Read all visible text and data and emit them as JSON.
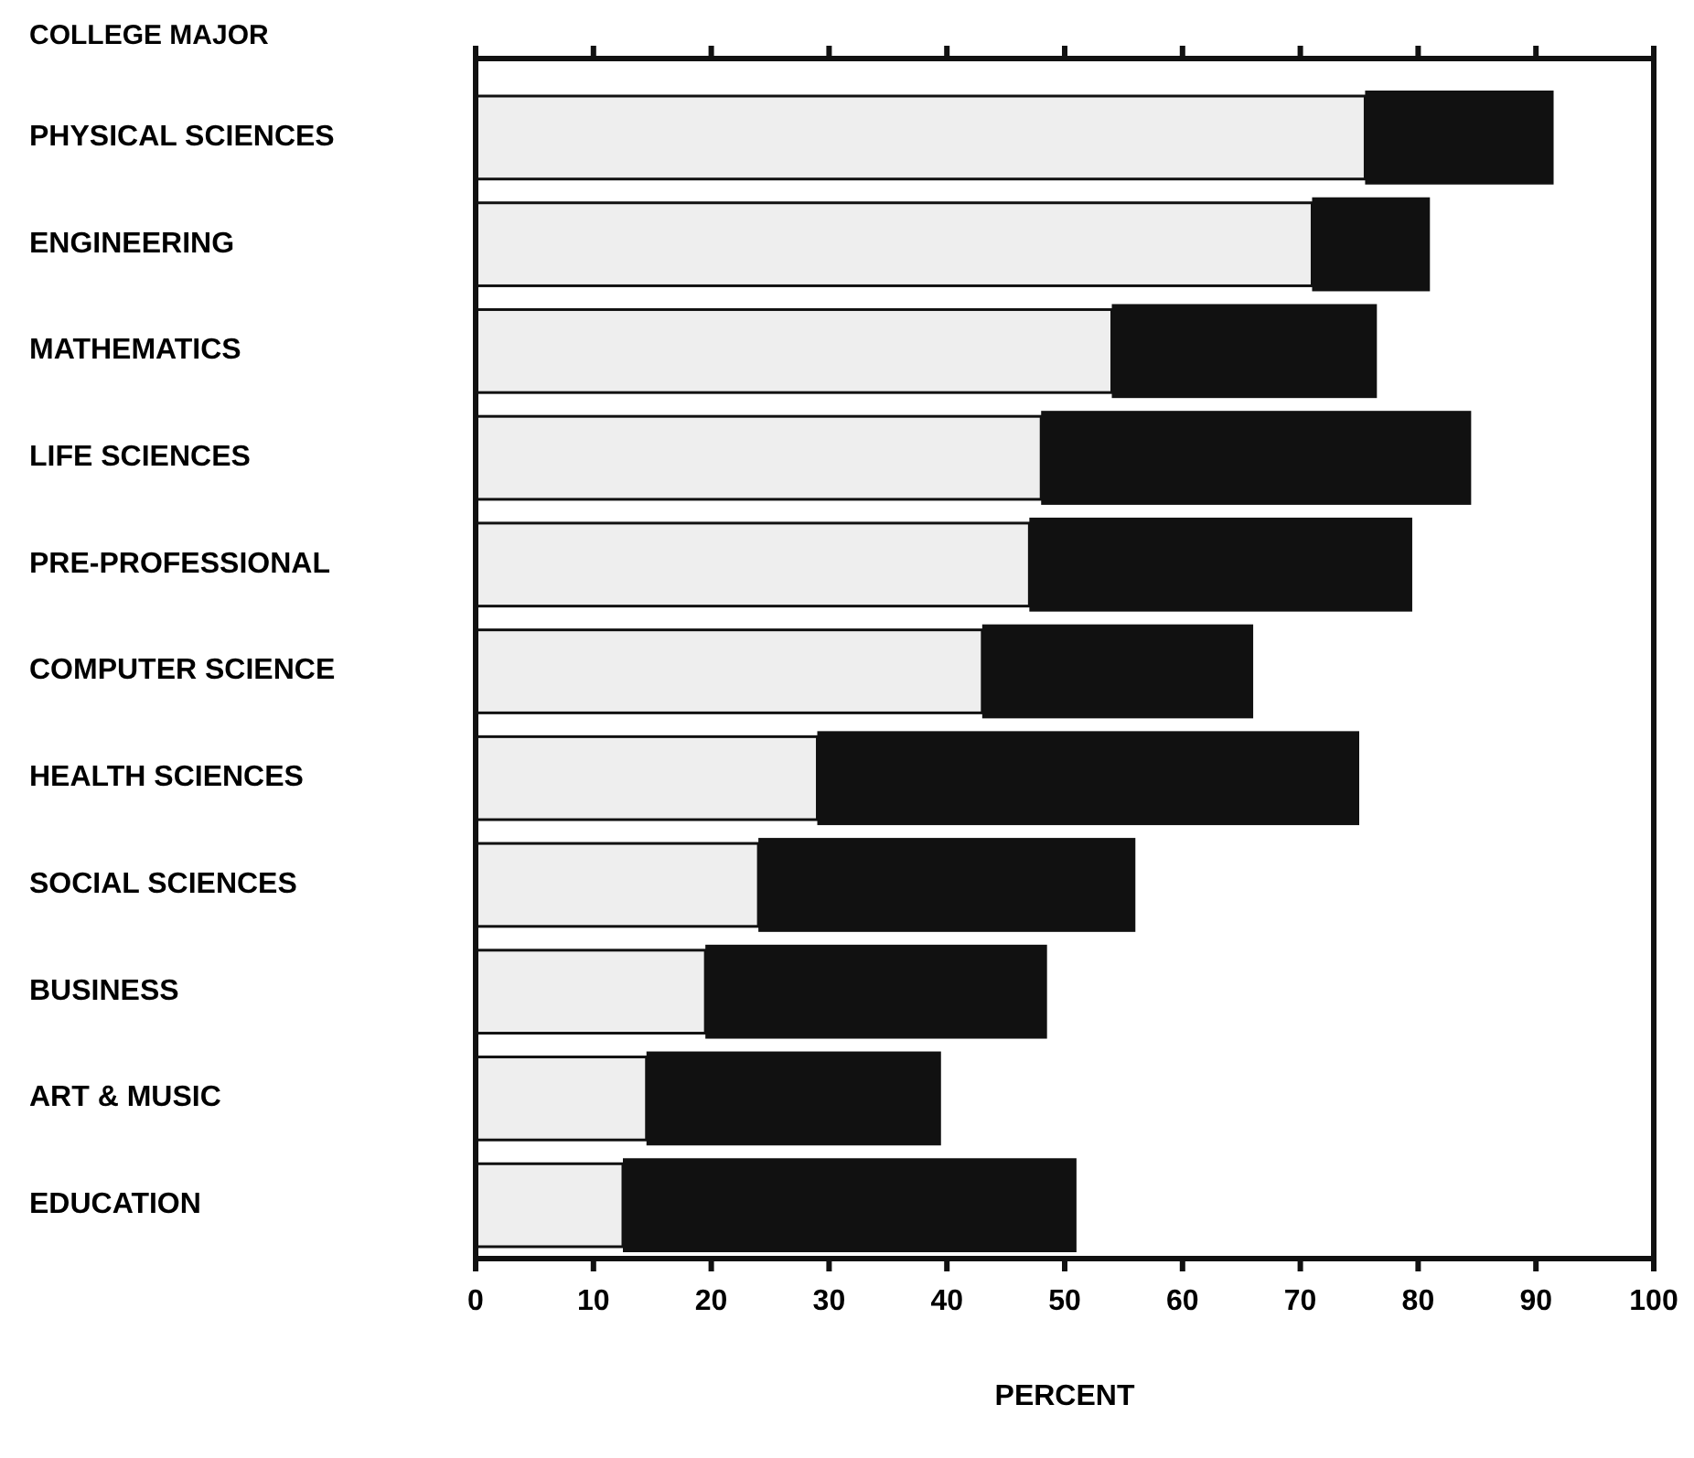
{
  "chart_data": {
    "type": "bar",
    "orientation": "horizontal",
    "stacked": true,
    "title": "COLLEGE MAJOR",
    "xlabel": "PERCENT",
    "categories": [
      "PHYSICAL SCIENCES",
      "ENGINEERING",
      "MATHEMATICS",
      "LIFE SCIENCES",
      "PRE-PROFESSIONAL",
      "COMPUTER SCIENCE",
      "HEALTH SCIENCES",
      "SOCIAL SCIENCES",
      "BUSINESS",
      "ART & MUSIC",
      "EDUCATION"
    ],
    "series": [
      {
        "color": "#eeeeee",
        "values": [
          75.5,
          71,
          54,
          48,
          47,
          43,
          29,
          24,
          19.5,
          14.5,
          12.5
        ]
      },
      {
        "color": "#111111",
        "values": [
          16,
          10,
          22.5,
          36.5,
          32.5,
          23,
          46,
          32,
          29,
          25,
          38.5
        ]
      }
    ],
    "xlim": [
      0,
      100
    ],
    "xticks": [
      0,
      10,
      20,
      30,
      40,
      50,
      60,
      70,
      80,
      90,
      100
    ],
    "grid": false
  }
}
